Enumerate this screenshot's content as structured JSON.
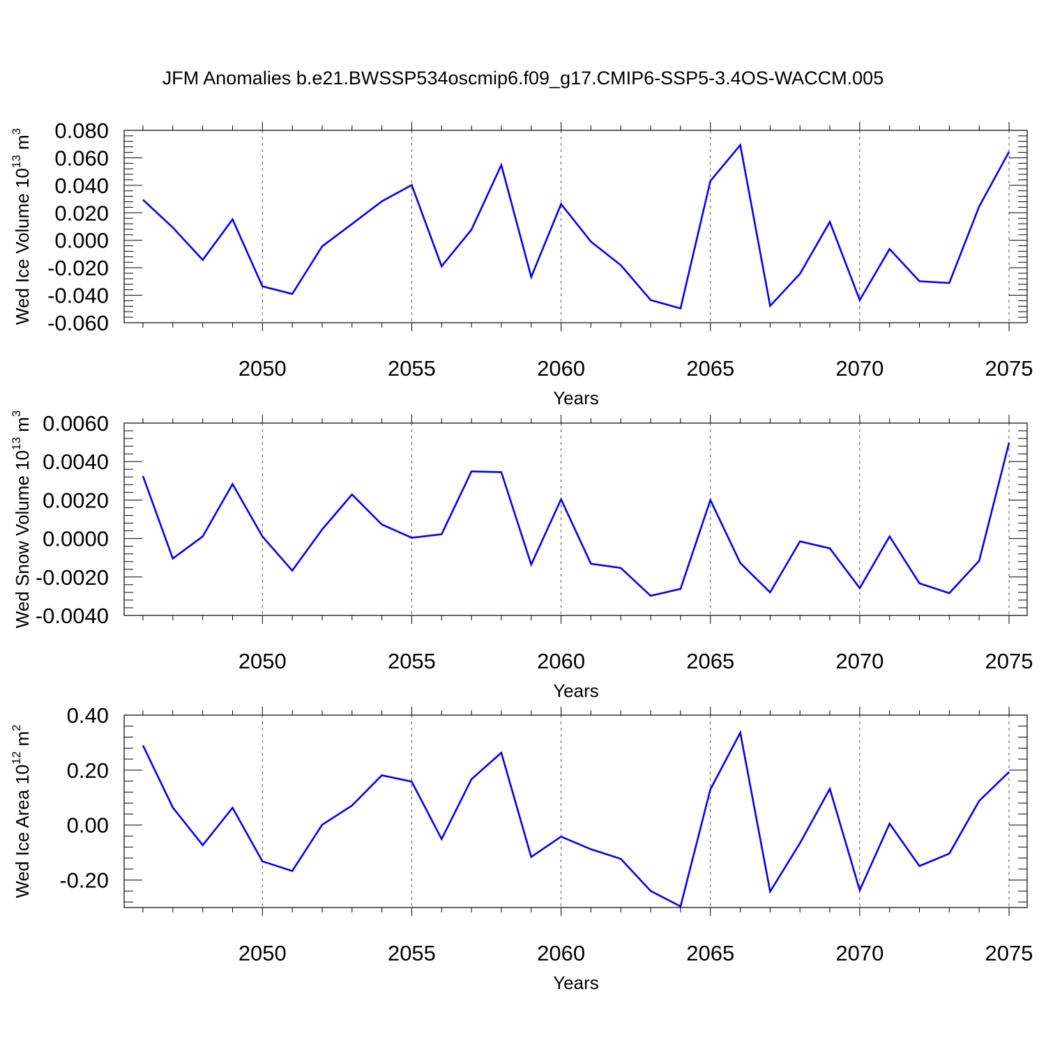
{
  "title": "JFM Anomalies b.e21.BWSSP534oscmip6.f09_g17.CMIP6-SSP5-3.4OS-WACCM.005",
  "line_color": "#0000ff",
  "chart_data": [
    {
      "type": "line",
      "xlabel": "Years",
      "ylabel": "Wed Ice Volume 10",
      "ylabel_exp": "13",
      "ylabel_unit": " m",
      "ylabel_unit_exp": "3",
      "xlim": [
        2046,
        2075
      ],
      "ylim": [
        -0.06,
        0.08
      ],
      "xticks": [
        2050,
        2055,
        2060,
        2065,
        2070,
        2075
      ],
      "xtick_labels": [
        "2050",
        "2055",
        "2060",
        "2065",
        "2070",
        "2075"
      ],
      "yticks": [
        -0.06,
        -0.04,
        -0.02,
        0.0,
        0.02,
        0.04,
        0.06,
        0.08
      ],
      "ytick_labels": [
        "-0.060",
        "-0.040",
        "-0.020",
        "0.000",
        "0.020",
        "0.040",
        "0.060",
        "0.080"
      ],
      "grid": "vertical dashed at major x ticks",
      "x": [
        2046,
        2047,
        2048,
        2049,
        2050,
        2051,
        2052,
        2053,
        2054,
        2055,
        2056,
        2057,
        2058,
        2059,
        2060,
        2061,
        2062,
        2063,
        2064,
        2065,
        2066,
        2067,
        2068,
        2069,
        2070,
        2071,
        2072,
        2073,
        2074,
        2075
      ],
      "values": [
        0.0295,
        0.0093,
        -0.0143,
        0.0152,
        -0.0335,
        -0.0391,
        -0.0044,
        0.0119,
        0.0283,
        0.0402,
        -0.0189,
        0.0077,
        0.0548,
        -0.0267,
        0.0264,
        -0.001,
        -0.0181,
        -0.0435,
        -0.0496,
        0.0431,
        0.0693,
        -0.0478,
        -0.0244,
        0.0134,
        -0.0435,
        -0.0064,
        -0.0298,
        -0.0311,
        0.0246,
        0.0644
      ]
    },
    {
      "type": "line",
      "xlabel": "Years",
      "ylabel": "Wed Snow Volume 10",
      "ylabel_exp": "13",
      "ylabel_unit": " m",
      "ylabel_unit_exp": "3",
      "xlim": [
        2046,
        2075
      ],
      "ylim": [
        -0.004,
        0.006
      ],
      "xticks": [
        2050,
        2055,
        2060,
        2065,
        2070,
        2075
      ],
      "xtick_labels": [
        "2050",
        "2055",
        "2060",
        "2065",
        "2070",
        "2075"
      ],
      "yticks": [
        -0.004,
        -0.002,
        0.0,
        0.002,
        0.004,
        0.006
      ],
      "ytick_labels": [
        "-0.0040",
        "-0.0020",
        "0.0000",
        "0.0020",
        "0.0040",
        "0.0060"
      ],
      "grid": "vertical dashed at major x ticks",
      "x": [
        2046,
        2047,
        2048,
        2049,
        2050,
        2051,
        2052,
        2053,
        2054,
        2055,
        2056,
        2057,
        2058,
        2059,
        2060,
        2061,
        2062,
        2063,
        2064,
        2065,
        2066,
        2067,
        2068,
        2069,
        2070,
        2071,
        2072,
        2073,
        2074,
        2075
      ],
      "values": [
        0.00325,
        -0.00104,
        0.00011,
        0.00283,
        0.00011,
        -0.00167,
        0.00047,
        0.00229,
        0.00073,
        4e-05,
        0.00022,
        0.00349,
        0.00345,
        -0.00135,
        0.00204,
        -0.00131,
        -0.00153,
        -0.00298,
        -0.00262,
        0.002,
        -0.00127,
        -0.0028,
        -0.00015,
        -0.00051,
        -0.00258,
        0.00011,
        -0.00233,
        -0.00284,
        -0.00116,
        0.00498
      ]
    },
    {
      "type": "line",
      "xlabel": "Years",
      "ylabel": "Wed Ice Area 10",
      "ylabel_exp": "12",
      "ylabel_unit": " m",
      "ylabel_unit_exp": "2",
      "xlim": [
        2046,
        2075
      ],
      "ylim": [
        -0.3,
        0.4
      ],
      "xticks": [
        2050,
        2055,
        2060,
        2065,
        2070,
        2075
      ],
      "xtick_labels": [
        "2050",
        "2055",
        "2060",
        "2065",
        "2070",
        "2075"
      ],
      "yticks": [
        -0.2,
        0.0,
        0.2,
        0.4
      ],
      "ytick_labels": [
        "-0.20",
        "0.00",
        "0.20",
        "0.40"
      ],
      "grid": "vertical dashed at major x ticks",
      "x": [
        2046,
        2047,
        2048,
        2049,
        2050,
        2051,
        2052,
        2053,
        2054,
        2055,
        2056,
        2057,
        2058,
        2059,
        2060,
        2061,
        2062,
        2063,
        2064,
        2065,
        2066,
        2067,
        2068,
        2069,
        2070,
        2071,
        2072,
        2073,
        2074,
        2075
      ],
      "values": [
        0.29,
        0.064,
        -0.073,
        0.063,
        -0.132,
        -0.167,
        0.001,
        0.071,
        0.181,
        0.158,
        -0.051,
        0.167,
        0.263,
        -0.116,
        -0.042,
        -0.088,
        -0.123,
        -0.24,
        -0.296,
        0.13,
        0.336,
        -0.242,
        -0.066,
        0.132,
        -0.237,
        0.005,
        -0.149,
        -0.104,
        0.088,
        0.193
      ]
    }
  ]
}
